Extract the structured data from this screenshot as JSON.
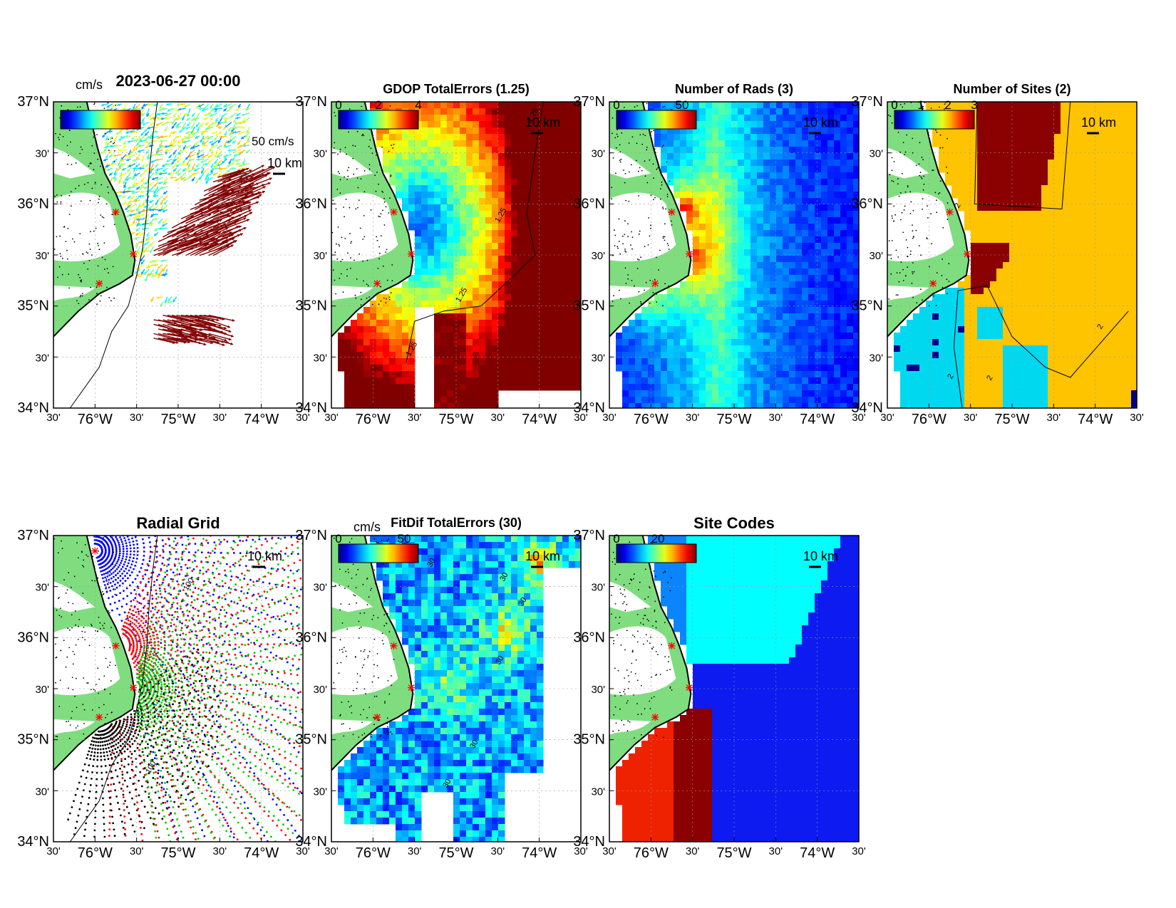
{
  "figure": {
    "datetime": "2023-06-27 00:00",
    "lat_ticks": [
      "37°N",
      "30'",
      "36°N",
      "30'",
      "35°N",
      "30'",
      "34°N"
    ],
    "lon_ticks": [
      "30'",
      "76°W",
      "30'",
      "75°W",
      "30'",
      "74°W",
      "30'"
    ]
  },
  "panels": [
    {
      "id": "currents",
      "title": "2023-06-27 00:00",
      "colorbar": {
        "unit": "cm/s",
        "tick_labels": []
      },
      "scale_vector": "50 cm/s",
      "scale_bar": "10 km",
      "field": "currents"
    },
    {
      "id": "gdop",
      "title": "GDOP TotalErrors (1.25)",
      "colorbar": {
        "unit": "",
        "tick_labels": [
          "0",
          "2",
          "4"
        ]
      },
      "scale_bar": "10 km",
      "contour_label": "1.25",
      "field": "gdop"
    },
    {
      "id": "rads",
      "title": "Number of Rads (3)",
      "colorbar": {
        "unit": "",
        "tick_labels": [
          "0",
          "50"
        ]
      },
      "scale_bar": "10 km",
      "field": "rads"
    },
    {
      "id": "sites",
      "title": "Number of Sites (2)",
      "colorbar": {
        "unit": "",
        "tick_labels": [
          "0",
          "1",
          "2",
          "3"
        ]
      },
      "scale_bar": "10 km",
      "contour_label": "2",
      "field": "sites"
    },
    {
      "id": "radial",
      "title": "Radial Grid",
      "scale_bar": "10 km",
      "contour_label": "100",
      "field": "radial"
    },
    {
      "id": "fitdif",
      "title": "FitDif TotalErrors (30)",
      "colorbar": {
        "unit": "cm/s",
        "tick_labels": [
          "0",
          "50"
        ]
      },
      "scale_bar": "10 km",
      "contour_label": "30",
      "field": "fitdif"
    },
    {
      "id": "codes",
      "title": "Site Codes",
      "colorbar": {
        "unit": "",
        "tick_labels": [
          "0",
          "20"
        ]
      },
      "scale_bar": "10 km",
      "field": "codes"
    }
  ],
  "colors": {
    "land": "#7fdd7f",
    "coast": "#000000",
    "site_marker": "#ff0000",
    "sites_field": [
      "#00008b",
      "#00d8f0",
      "#ffc400",
      "#8b0000"
    ],
    "codes_field": [
      "#0d1bf0",
      "#00ffff",
      "#0a85ff",
      "#8b0000",
      "#ee2200"
    ],
    "radial_sites": [
      "#0000ff",
      "#ff0000",
      "#00cc00",
      "#000000"
    ]
  }
}
